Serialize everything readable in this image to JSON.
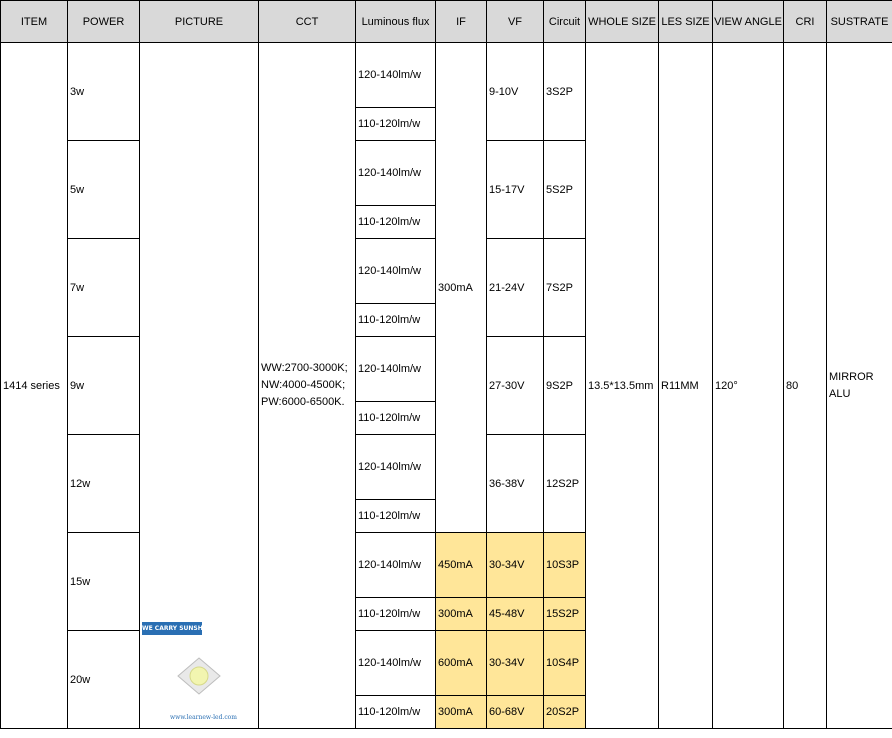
{
  "headers": [
    "ITEM",
    "POWER",
    "PICTURE",
    "CCT",
    "Luminous flux",
    "IF",
    "VF",
    "Circuit",
    "WHOLE SIZE",
    "LES SIZE",
    "VIEW ANGLE",
    "CRI",
    "SUSTRATE"
  ],
  "item": "1414 series",
  "picture": {
    "brand_text": "WE CARRY SUNSHINE",
    "url_text": "www.learnew-led.com",
    "chip_color": "#f2f5b0"
  },
  "cct_lines": [
    "WW:2700-3000K;",
    "NW:4000-4500K;",
    "PW:6000-6500K."
  ],
  "if_shared": "300mA",
  "whole_size": "13.5*13.5mm",
  "les_size": "R11MM",
  "view_angle": "120°",
  "cri": "80",
  "substrate_lines": [
    "MIRROR",
    "ALU"
  ],
  "flux_hi": "120-140lm/w",
  "flux_lo": "110-120lm/w",
  "highlight_color": "#ffe699",
  "powers": [
    {
      "power": "3w",
      "vf": "9-10V",
      "circuit": "3S2P"
    },
    {
      "power": "5w",
      "vf": "15-17V",
      "circuit": "5S2P"
    },
    {
      "power": "7w",
      "vf": "21-24V",
      "circuit": "7S2P"
    },
    {
      "power": "9w",
      "vf": "27-30V",
      "circuit": "9S2P"
    },
    {
      "power": "12w",
      "vf": "36-38V",
      "circuit": "12S2P"
    }
  ],
  "split_rows": [
    {
      "power": "15w",
      "sub": [
        {
          "if": "450mA",
          "vf": "30-34V",
          "circuit": "10S3P"
        },
        {
          "if": "300mA",
          "vf": "45-48V",
          "circuit": "15S2P"
        }
      ]
    },
    {
      "power": "20w",
      "sub": [
        {
          "if": "600mA",
          "vf": "30-34V",
          "circuit": "10S4P"
        },
        {
          "if": "300mA",
          "vf": "60-68V",
          "circuit": "20S2P"
        }
      ]
    }
  ]
}
